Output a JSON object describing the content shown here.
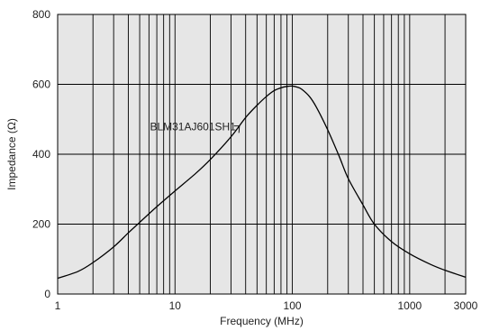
{
  "chart_data": {
    "type": "line",
    "xlabel": "Frequency (MHz)",
    "ylabel": "Impedance (Ω)",
    "xscale": "log",
    "xlim": [
      1,
      3000
    ],
    "ylim": [
      0,
      800
    ],
    "grid": true,
    "x_ticks": [
      1,
      10,
      100,
      1000,
      3000
    ],
    "x_tick_labels": [
      "1",
      "10",
      "100",
      "1000",
      "3000"
    ],
    "y_ticks": [
      0,
      200,
      400,
      600,
      800
    ],
    "y_tick_labels": [
      "0",
      "200",
      "400",
      "600",
      "800"
    ],
    "series": [
      {
        "name": "BLM31AJ601SH1",
        "color": "#000000",
        "x": [
          1,
          1.5,
          2,
          3,
          4,
          5,
          7,
          10,
          15,
          20,
          30,
          40,
          50,
          60,
          70,
          80,
          90,
          100,
          110,
          120,
          140,
          160,
          200,
          250,
          300,
          400,
          500,
          700,
          1000,
          1500,
          2000,
          3000
        ],
        "y": [
          45,
          65,
          90,
          135,
          175,
          205,
          250,
          295,
          345,
          385,
          450,
          505,
          540,
          565,
          582,
          590,
          594,
          595,
          592,
          586,
          565,
          535,
          470,
          395,
          330,
          255,
          200,
          150,
          115,
          85,
          68,
          48
        ]
      }
    ],
    "annotations": [
      {
        "text": "BLM31AJ601SH1",
        "x": 33,
        "y": 468,
        "target_x": 35,
        "target_y": 461
      }
    ],
    "colors": {
      "plot_background": "#e6e6e6",
      "grid": "#000000",
      "curve": "#000000"
    }
  }
}
